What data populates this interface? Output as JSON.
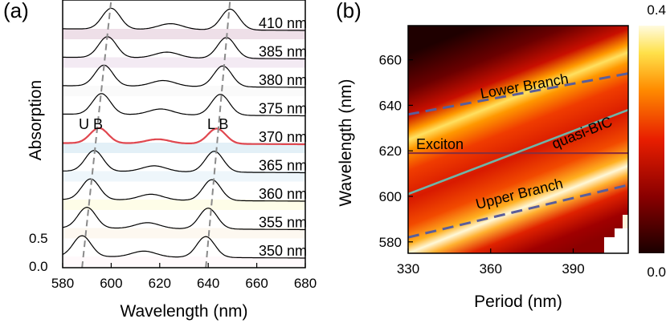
{
  "panel_a": {
    "label": "(a)",
    "ylabel": "Absorption",
    "xlabel": "Wavelength (nm)",
    "y_tick_labels": [
      "0.0",
      "0.5"
    ],
    "annotation_ub": "U B",
    "annotation_lb": "L B"
  },
  "panel_b": {
    "label": "(b)",
    "xlabel": "Period (nm)",
    "ylabel": "Wavelength (nm)",
    "annotations": {
      "lower_branch": "Lower Branch",
      "upper_branch": "Upper Branch",
      "exciton": "Exciton",
      "quasi_bic": "quasi-BIC"
    },
    "colorbar": {
      "max_label": "0.4",
      "min_label": "0.0"
    }
  },
  "colors": {
    "highlight_curve": "#e0474f",
    "exciton_line": "#8b2f3a",
    "quasi_bic_line": "#6fb5a8",
    "branch_dash": "#5a5e9a",
    "trend_dash": "#8a8a8a"
  },
  "chart_data": [
    {
      "type": "line",
      "title": "",
      "xlabel": "Wavelength (nm)",
      "ylabel": "Absorption",
      "xlim": [
        580,
        680
      ],
      "x_ticks": [
        580,
        600,
        620,
        640,
        660,
        680
      ],
      "series": [
        {
          "name": "350 nm",
          "ub": 588,
          "lb": 639,
          "band": "#fff9fb"
        },
        {
          "name": "355 nm",
          "ub": 590,
          "lb": 640,
          "band": "#fdf8f0"
        },
        {
          "name": "360 nm",
          "ub": 591.5,
          "lb": 641.5,
          "band": "#fefde8"
        },
        {
          "name": "365 nm",
          "ub": 593,
          "lb": 642.5,
          "band": "#eef6fb"
        },
        {
          "name": "370 nm",
          "ub": 595,
          "lb": 643.5,
          "band": "#e3f0f7",
          "highlight": true
        },
        {
          "name": "375 nm",
          "ub": 596,
          "lb": 645,
          "band": "#ffffff"
        },
        {
          "name": "380 nm",
          "ub": 597,
          "lb": 646,
          "band": "#fafafa"
        },
        {
          "name": "385 nm",
          "ub": 598.5,
          "lb": 647.5,
          "band": "#f3eaf3"
        },
        {
          "name": "410 nm",
          "ub": 600,
          "lb": 649,
          "band": "#eedfe8"
        }
      ]
    },
    {
      "type": "heatmap",
      "title": "",
      "xlabel": "Period (nm)",
      "ylabel": "Wavelength (nm)",
      "xlim": [
        330,
        410
      ],
      "ylim": [
        575,
        675
      ],
      "x_ticks": [
        330,
        360,
        390
      ],
      "y_ticks": [
        580,
        600,
        620,
        640,
        660
      ],
      "colorbar_range": [
        0.0,
        0.4
      ],
      "lines": [
        {
          "name": "Exciton",
          "x": [
            330,
            410
          ],
          "y": [
            619,
            619
          ]
        },
        {
          "name": "quasi-BIC",
          "x": [
            330,
            410
          ],
          "y": [
            601,
            638
          ]
        },
        {
          "name": "Lower Branch",
          "x": [
            330,
            410
          ],
          "y": [
            636,
            654
          ]
        },
        {
          "name": "Upper Branch",
          "x": [
            330,
            410
          ],
          "y": [
            582,
            605
          ]
        }
      ]
    }
  ]
}
